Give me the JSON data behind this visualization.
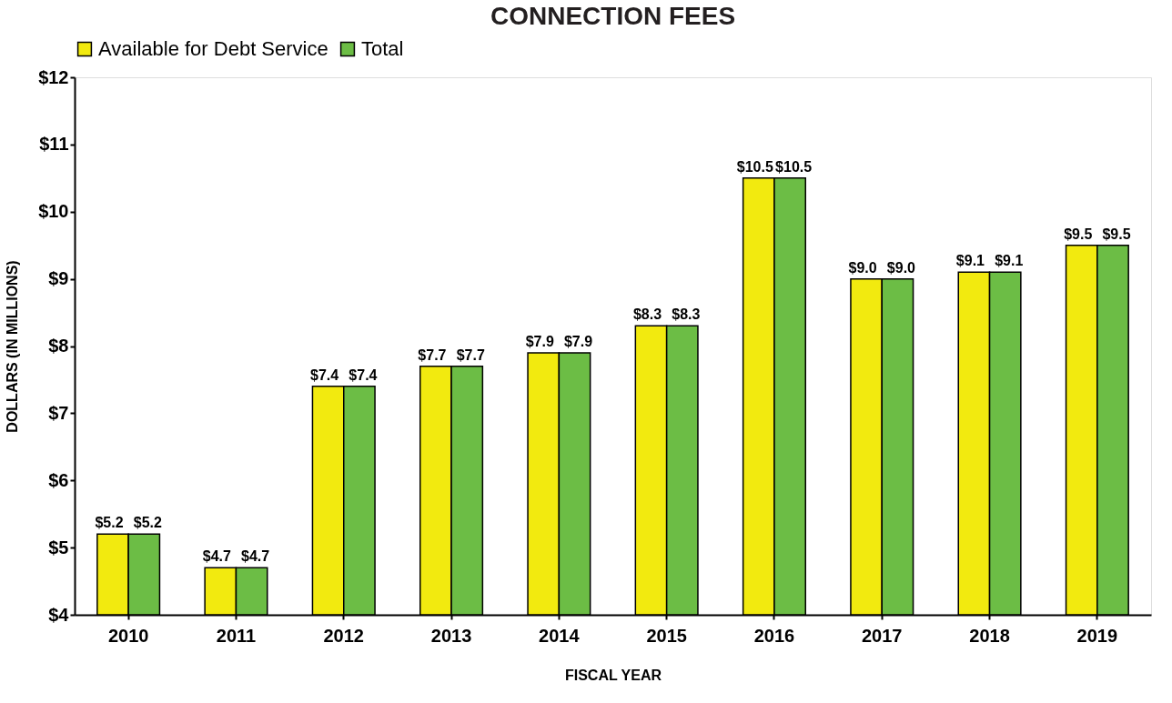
{
  "chart_data": {
    "type": "bar",
    "title": "CONNECTION FEES",
    "xlabel": "FISCAL YEAR",
    "ylabel": "DOLLARS (IN MILLIONS)",
    "categories": [
      "2010",
      "2011",
      "2012",
      "2013",
      "2014",
      "2015",
      "2016",
      "2017",
      "2018",
      "2019"
    ],
    "series": [
      {
        "name": "Available for Debt Service",
        "color": "#f2ea0f",
        "values": [
          5.2,
          4.7,
          7.4,
          7.7,
          7.9,
          8.3,
          10.5,
          9.0,
          9.1,
          9.5
        ],
        "value_labels": [
          "$5.2",
          "$4.7",
          "$7.4",
          "$7.7",
          "$7.9",
          "$8.3",
          "$10.5",
          "$9.0",
          "$9.1",
          "$9.5"
        ]
      },
      {
        "name": "Total",
        "color": "#6cbd45",
        "values": [
          5.2,
          4.7,
          7.4,
          7.7,
          7.9,
          8.3,
          10.5,
          9.0,
          9.1,
          9.5
        ],
        "value_labels": [
          "$5.2",
          "$4.7",
          "$7.4",
          "$7.7",
          "$7.9",
          "$8.3",
          "$10.5",
          "$9.0",
          "$9.1",
          "$9.5"
        ]
      }
    ],
    "ylim": [
      4,
      12
    ],
    "yticks": [
      {
        "value": 4,
        "label": "$4"
      },
      {
        "value": 5,
        "label": "$5"
      },
      {
        "value": 6,
        "label": "$6"
      },
      {
        "value": 7,
        "label": "$7"
      },
      {
        "value": 8,
        "label": "$8"
      },
      {
        "value": 9,
        "label": "$9"
      },
      {
        "value": 10,
        "label": "$10"
      },
      {
        "value": 11,
        "label": "$11"
      },
      {
        "value": 12,
        "label": "$12"
      }
    ],
    "grid": false,
    "legend": "top"
  }
}
